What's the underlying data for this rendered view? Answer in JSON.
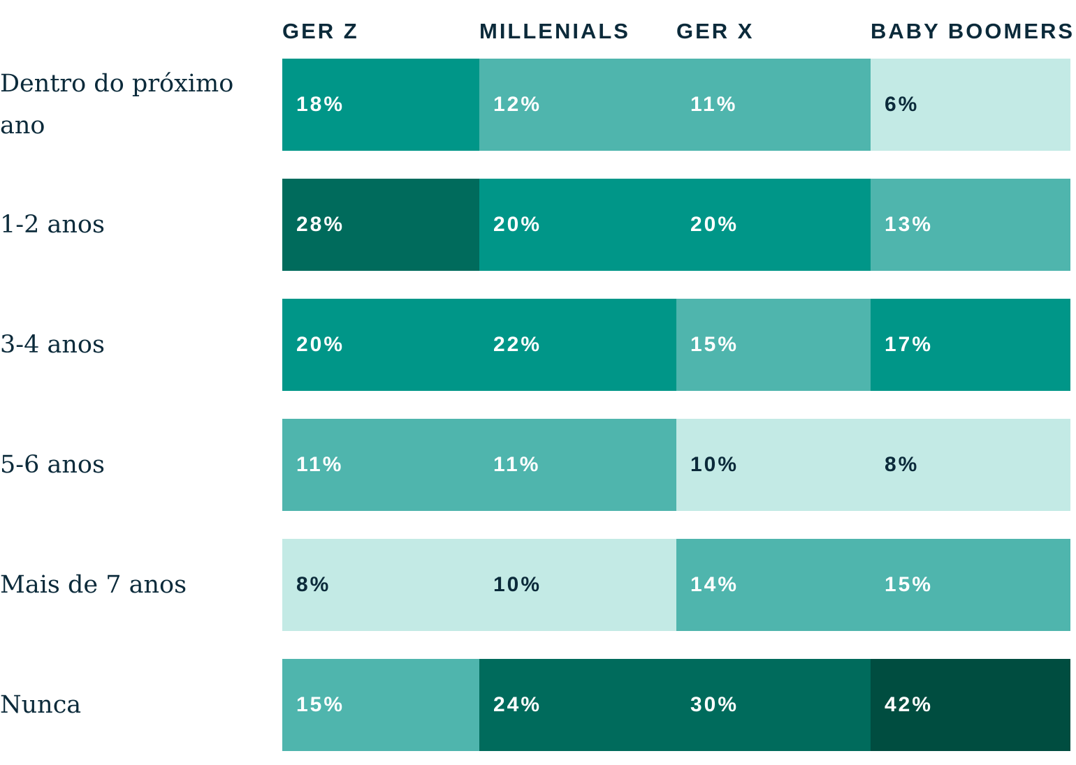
{
  "chart_data": {
    "type": "heatmap",
    "columns": [
      "GER Z",
      "MILLENIALS",
      "GER X",
      "BABY BOOMERS"
    ],
    "rows": [
      {
        "label": "Dentro do próximo ano",
        "values": [
          18,
          12,
          11,
          6
        ],
        "labels": [
          "18%",
          "12%",
          "11%",
          "6%"
        ]
      },
      {
        "label": "1-2 anos",
        "values": [
          28,
          20,
          20,
          13
        ],
        "labels": [
          "28%",
          "20%",
          "20%",
          "13%"
        ]
      },
      {
        "label": "3-4 anos",
        "values": [
          20,
          22,
          15,
          17
        ],
        "labels": [
          "20%",
          "22%",
          "15%",
          "17%"
        ]
      },
      {
        "label": "5-6 anos",
        "values": [
          11,
          11,
          10,
          8
        ],
        "labels": [
          "11%",
          "11%",
          "10%",
          "8%"
        ]
      },
      {
        "label": "Mais de 7 anos",
        "values": [
          8,
          10,
          14,
          15
        ],
        "labels": [
          "8%",
          "10%",
          "14%",
          "15%"
        ]
      },
      {
        "label": "Nunca",
        "values": [
          15,
          24,
          30,
          42
        ],
        "labels": [
          "15%",
          "24%",
          "30%",
          "42%"
        ]
      }
    ],
    "color_scale": [
      {
        "max": 10,
        "fill": "#c3eae5",
        "text": "#0b2a3a"
      },
      {
        "max": 15,
        "fill": "#4fb5ad",
        "text": "#ffffff"
      },
      {
        "max": 22,
        "fill": "#009688",
        "text": "#ffffff"
      },
      {
        "max": 30,
        "fill": "#006b5c",
        "text": "#ffffff"
      },
      {
        "max": 100,
        "fill": "#004d40",
        "text": "#ffffff"
      }
    ]
  }
}
